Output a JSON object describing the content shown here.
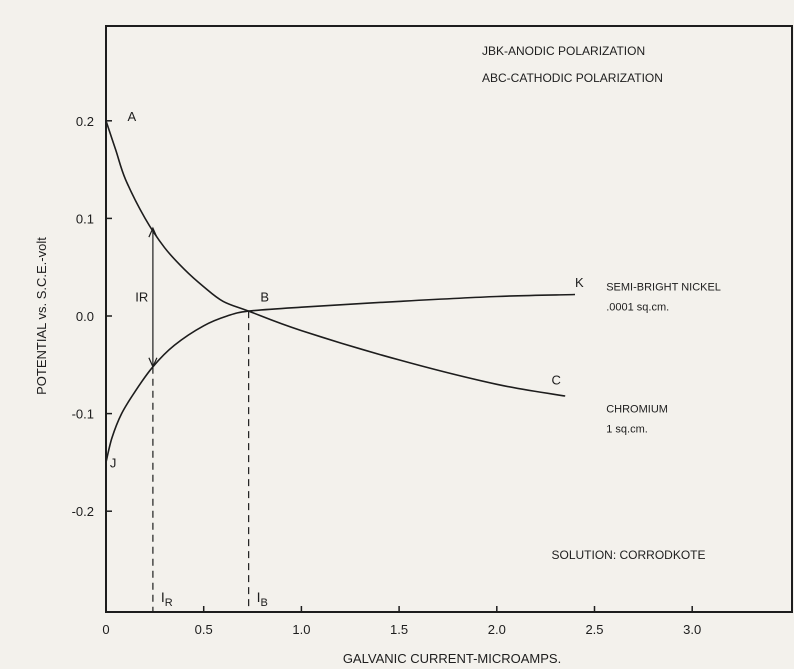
{
  "chart_data": {
    "type": "line",
    "xlabel": "GALVANIC CURRENT-MICROAMPS.",
    "ylabel": "POTENTIAL vs. S.C.E.-volt",
    "xlim": [
      0,
      3.5
    ],
    "ylim": [
      -0.3,
      0.3
    ],
    "x_ticks": [
      0,
      0.5,
      1.0,
      1.5,
      2.0,
      2.5,
      3.0
    ],
    "x_tick_labels": [
      "0",
      "0.5",
      "1.0",
      "1.5",
      "2.0",
      "2.5",
      "3.0"
    ],
    "y_ticks": [
      0.2,
      0.1,
      0.0,
      -0.1,
      -0.2
    ],
    "y_tick_labels": [
      "0.2",
      "0.1",
      "0.0",
      "-0.1",
      "-0.2"
    ],
    "grid": false,
    "legend_text": [
      "JBK-ANODIC POLARIZATION",
      "ABC-CATHODIC POLARIZATION"
    ],
    "series": [
      {
        "name": "JBK",
        "color": "#1d1d1d",
        "x": [
          0.0,
          0.03,
          0.08,
          0.15,
          0.24,
          0.35,
          0.5,
          0.62,
          0.73,
          1.0,
          1.5,
          2.0,
          2.4
        ],
        "y": [
          -0.15,
          -0.125,
          -0.1,
          -0.077,
          -0.052,
          -0.03,
          -0.01,
          0.0,
          0.005,
          0.009,
          0.015,
          0.02,
          0.022
        ]
      },
      {
        "name": "ABC",
        "color": "#1d1d1d",
        "x": [
          0.0,
          0.05,
          0.1,
          0.2,
          0.3,
          0.4,
          0.5,
          0.6,
          0.73,
          1.0,
          1.5,
          2.0,
          2.35
        ],
        "y": [
          0.2,
          0.17,
          0.14,
          0.1,
          0.07,
          0.048,
          0.03,
          0.015,
          0.005,
          -0.015,
          -0.045,
          -0.07,
          -0.082
        ]
      }
    ],
    "point_labels": [
      {
        "text": "A",
        "x": 0.11,
        "y": 0.205
      },
      {
        "text": "B",
        "x": 0.79,
        "y": 0.02
      },
      {
        "text": "C",
        "x": 2.28,
        "y": -0.065
      },
      {
        "text": "J",
        "x": 0.02,
        "y": -0.15
      },
      {
        "text": "K",
        "x": 2.4,
        "y": 0.035
      }
    ],
    "curve_labels": [
      {
        "lines": [
          "SEMI-BRIGHT NICKEL",
          ".0001 sq.cm."
        ],
        "x": 2.56,
        "y": 0.03
      },
      {
        "lines": [
          "CHROMIUM",
          "1 sq.cm."
        ],
        "x": 2.56,
        "y": -0.095
      }
    ],
    "ir": {
      "label": "IR",
      "x": 0.24,
      "y_top": 0.09,
      "y_bottom": -0.052,
      "label_x": 0.15,
      "label_y": 0.02
    },
    "reference_lines": [
      {
        "x": 0.24,
        "y": -0.052,
        "label": "I",
        "sub": "R"
      },
      {
        "x": 0.73,
        "y": 0.005,
        "label": "I",
        "sub": "B"
      }
    ],
    "annotation": {
      "text": "SOLUTION: CORRODKOTE",
      "x": 2.28,
      "y": -0.245
    }
  }
}
